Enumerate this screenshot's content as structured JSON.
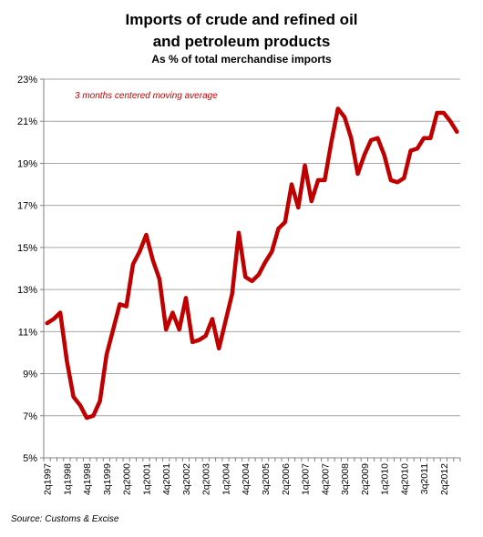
{
  "chart_data": {
    "type": "line",
    "title": "Imports of crude and refined oil",
    "title_line2": "and petroleum products",
    "subtitle": "As % of total merchandise imports",
    "annotation": "3 months centered moving average",
    "source": "Source: Customs & Excise",
    "xlabel": "",
    "ylabel": "",
    "ylim": [
      5,
      23
    ],
    "y_ticks": [
      "5%",
      "7%",
      "9%",
      "11%",
      "13%",
      "15%",
      "17%",
      "19%",
      "21%",
      "23%"
    ],
    "x_tick_labels": [
      "2q1997",
      "1q1998",
      "4q1998",
      "3q1999",
      "2q2000",
      "1q2001",
      "4q2001",
      "3q2002",
      "2q2003",
      "1q2004",
      "4q2004",
      "3q2005",
      "2q2006",
      "1q2007",
      "4q2007",
      "3q2008",
      "2q2009",
      "1q2010",
      "4q2010",
      "3q2011",
      "2q2012"
    ],
    "grid": true,
    "line_color": "#C00000",
    "series": [
      {
        "values": [
          11.4,
          11.6,
          11.9,
          9.6,
          7.9,
          7.5,
          6.9,
          7.0,
          7.7,
          9.9,
          11.1,
          12.3,
          12.2,
          14.2,
          14.8,
          15.6,
          14.4,
          13.5,
          11.1,
          11.9,
          11.1,
          12.6,
          10.5,
          10.6,
          10.8,
          11.6,
          10.2,
          11.5,
          12.8,
          15.7,
          13.6,
          13.4,
          13.7,
          14.3,
          14.8,
          15.9,
          16.2,
          18.0,
          16.9,
          18.9,
          17.2,
          18.2,
          18.2,
          20.0,
          21.6,
          21.2,
          20.2,
          18.5,
          19.4,
          20.1,
          20.2,
          19.4,
          18.2,
          18.1,
          18.3,
          19.6,
          19.7,
          20.2,
          20.2,
          21.4,
          21.4,
          21.0,
          20.5
        ]
      }
    ]
  }
}
